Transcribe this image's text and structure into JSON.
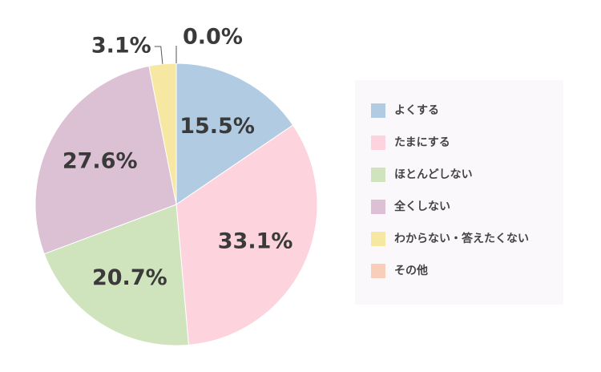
{
  "chart_data": {
    "type": "pie",
    "categories": [
      "よくする",
      "たまにする",
      "ほとんどしない",
      "全くしない",
      "わからない・答えたくない",
      "その他"
    ],
    "values": [
      15.5,
      33.1,
      20.7,
      27.6,
      3.1,
      0.0
    ],
    "value_labels": [
      "15.5%",
      "33.1%",
      "20.7%",
      "27.6%",
      "3.1%",
      "0.0%"
    ],
    "colors": [
      "#b1cce2",
      "#fdd3de",
      "#cfe4bc",
      "#dcc0d4",
      "#f6e7a2",
      "#f8cdb9"
    ],
    "legend": "right"
  }
}
